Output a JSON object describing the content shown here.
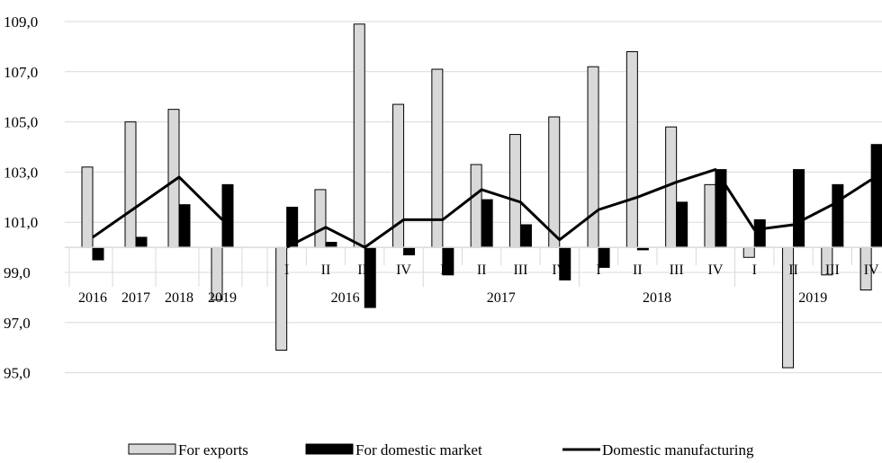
{
  "chart_data": {
    "type": "bar",
    "title": "",
    "xlabel": "",
    "ylabel": "",
    "ylim": [
      94,
      109
    ],
    "baseline": 100,
    "yticks": [
      "95,0",
      "97,0",
      "99,0",
      "101,0",
      "103,0",
      "105,0",
      "107,0",
      "109,0"
    ],
    "ytick_values": [
      95,
      97,
      99,
      101,
      103,
      105,
      107,
      109
    ],
    "grid": true,
    "legend_position": "bottom",
    "colors": {
      "exports": "#d9d9d9",
      "domestic_market": "#000000",
      "manufacturing": "#000000",
      "grid": "#d9d9d9",
      "bar_outline": "#000000"
    },
    "annual": {
      "categories": [
        "2016",
        "2017",
        "2018",
        "2019"
      ],
      "series": [
        {
          "name": "For exports",
          "values": [
            103.2,
            105.0,
            105.5,
            97.9
          ]
        },
        {
          "name": "For domestic market",
          "values": [
            99.5,
            100.4,
            101.7,
            102.5
          ]
        },
        {
          "name": "Domestic manufacturing",
          "values": [
            100.4,
            101.6,
            102.8,
            101.1
          ]
        }
      ]
    },
    "quarterly": {
      "groups": [
        "2016",
        "2017",
        "2018",
        "2019"
      ],
      "categories": [
        "I",
        "II",
        "III",
        "IV",
        "I",
        "II",
        "III",
        "IV",
        "I",
        "II",
        "III",
        "IV",
        "I",
        "II",
        "III",
        "IV"
      ],
      "series": [
        {
          "name": "For exports",
          "values": [
            95.9,
            102.3,
            108.9,
            105.7,
            107.1,
            103.3,
            104.5,
            105.2,
            107.2,
            107.8,
            104.8,
            102.5,
            99.6,
            95.2,
            98.9,
            98.3
          ]
        },
        {
          "name": "For domestic market",
          "values": [
            101.6,
            100.2,
            97.6,
            99.7,
            98.9,
            101.9,
            100.9,
            98.7,
            99.2,
            99.9,
            101.8,
            103.1,
            101.1,
            103.1,
            102.5,
            104.1
          ]
        },
        {
          "name": "Domestic manufacturing",
          "values": [
            100.0,
            100.8,
            100.0,
            101.1,
            101.1,
            102.3,
            101.8,
            100.3,
            101.5,
            102.0,
            102.6,
            103.1,
            100.7,
            100.9,
            101.7,
            102.7
          ]
        }
      ]
    },
    "legend": [
      {
        "label": "For exports",
        "kind": "bar-light"
      },
      {
        "label": "For domestic market",
        "kind": "bar-dark"
      },
      {
        "label": "Domestic manufacturing",
        "kind": "line"
      }
    ]
  }
}
